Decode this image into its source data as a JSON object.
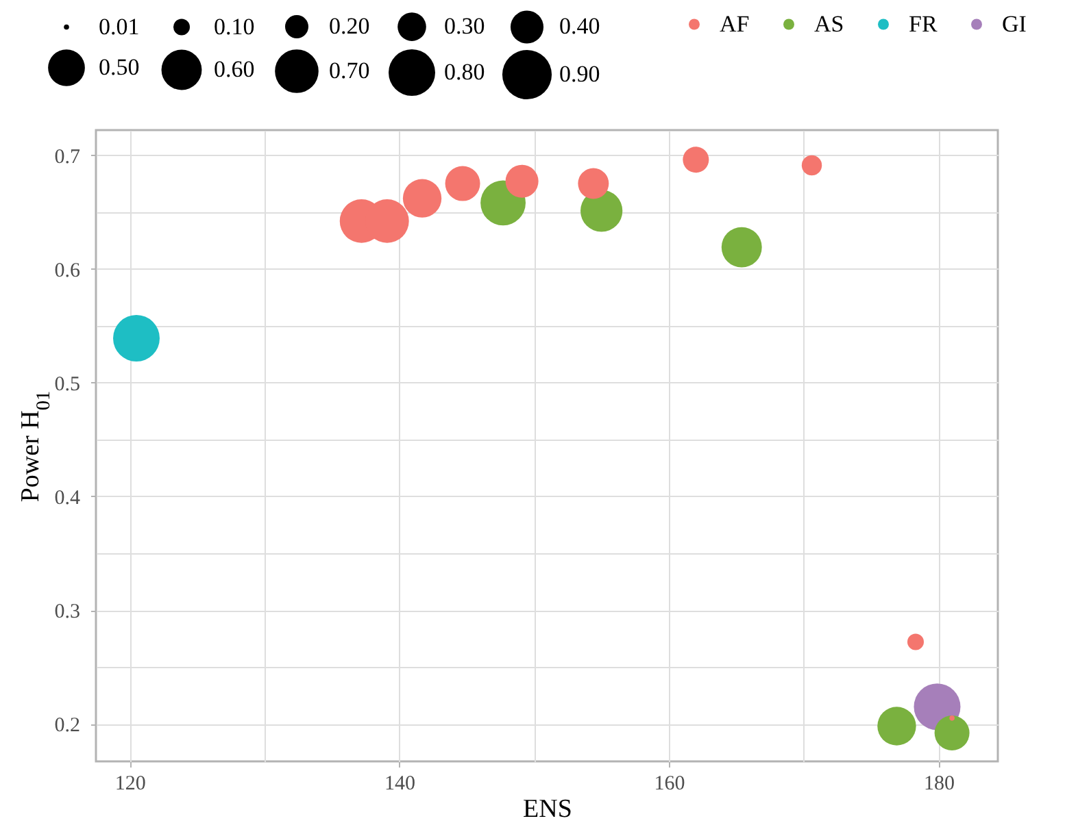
{
  "chart_data": {
    "type": "bubble",
    "xlabel": "ENS",
    "ylabel": "Power H$_{01}$",
    "xlim": [
      117.5,
      184.4
    ],
    "ylim": [
      0.167,
      0.722
    ],
    "xticks": [
      120,
      {
        "value": 130,
        "label": null
      },
      140,
      {
        "value": 150,
        "label": null
      },
      160,
      {
        "value": 170,
        "label": null
      },
      180
    ],
    "yticks": [
      0.2,
      {
        "value": 0.25,
        "label": null
      },
      0.3,
      {
        "value": 0.35,
        "label": null
      },
      0.4,
      {
        "value": 0.45,
        "label": null
      },
      0.5,
      {
        "value": 0.55,
        "label": null
      },
      0.6,
      {
        "value": 0.65,
        "label": null
      },
      0.7
    ],
    "grid": true,
    "legend": "top",
    "marker": "circle",
    "size_legend": [
      0.01,
      {
        "value": 0.1,
        "label": "0.10"
      },
      {
        "value": 0.2,
        "label": "0.20"
      },
      {
        "value": 0.3,
        "label": "0.30"
      },
      {
        "value": 0.4,
        "label": "0.40"
      },
      {
        "value": 0.5,
        "label": "0.50"
      },
      {
        "value": 0.6,
        "label": "0.60"
      },
      {
        "value": 0.7,
        "label": "0.70"
      },
      {
        "value": 0.8,
        "label": "0.80"
      },
      {
        "value": 0.9,
        "label": "0.90"
      }
    ],
    "series": [
      {
        "name": "AF",
        "color": "#f4766e",
        "x": [
          137.2,
          139.1,
          141.7,
          144.7,
          149.1,
          154.4,
          162.0,
          170.6,
          178.3,
          181.0
        ],
        "values": [
          0.642,
          0.642,
          0.662,
          0.675,
          0.677,
          0.675,
          0.696,
          0.691,
          0.272,
          0.205
        ],
        "sizes": [
          0.7,
          0.7,
          0.55,
          0.45,
          0.4,
          0.35,
          0.25,
          0.15,
          0.1,
          0.01
        ]
      },
      {
        "name": "AS",
        "color": "#7ab13f",
        "x": [
          147.7,
          155.0,
          165.4,
          176.9,
          181.0
        ],
        "values": [
          0.658,
          0.651,
          0.619,
          0.198,
          0.192
        ],
        "sizes": [
          0.75,
          0.65,
          0.6,
          0.55,
          0.45
        ]
      },
      {
        "name": "FR",
        "color": "#1ebec4",
        "x": [
          120.5
        ],
        "values": [
          0.539
        ],
        "sizes": [
          0.8
        ]
      },
      {
        "name": "GI",
        "color": "#a67fba",
        "x": [
          179.9
        ],
        "values": [
          0.215
        ],
        "sizes": [
          0.8
        ]
      }
    ]
  }
}
